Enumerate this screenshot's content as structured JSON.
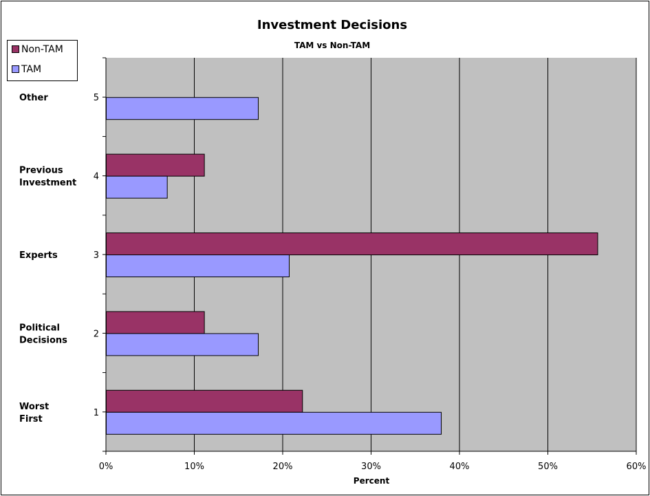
{
  "colors": {
    "plot_bg": "#C0C0C0",
    "non_tam": "#993366",
    "tam": "#9999FF",
    "grid": "#000000"
  },
  "chart_data": {
    "type": "bar",
    "orientation": "horizontal",
    "title": "Investment Decisions",
    "subtitle": "TAM vs Non-TAM",
    "xlabel": "Percent",
    "ylabel": "",
    "xlim": [
      0,
      60
    ],
    "x_ticks": [
      "0%",
      "10%",
      "20%",
      "30%",
      "40%",
      "50%",
      "60%"
    ],
    "categories": [
      "1",
      "2",
      "3",
      "4",
      "5"
    ],
    "category_labels": [
      [
        "Worst",
        "First"
      ],
      [
        "Political",
        "Decisions"
      ],
      [
        "Experts"
      ],
      [
        "Previous",
        "Investment"
      ],
      [
        "Other"
      ]
    ],
    "grid": true,
    "legend_position": "top-left",
    "series": [
      {
        "name": "Non-TAM",
        "values": [
          22.2,
          11.1,
          55.6,
          11.1,
          0
        ]
      },
      {
        "name": "TAM",
        "values": [
          37.9,
          17.2,
          20.7,
          6.9,
          17.2
        ]
      }
    ]
  }
}
